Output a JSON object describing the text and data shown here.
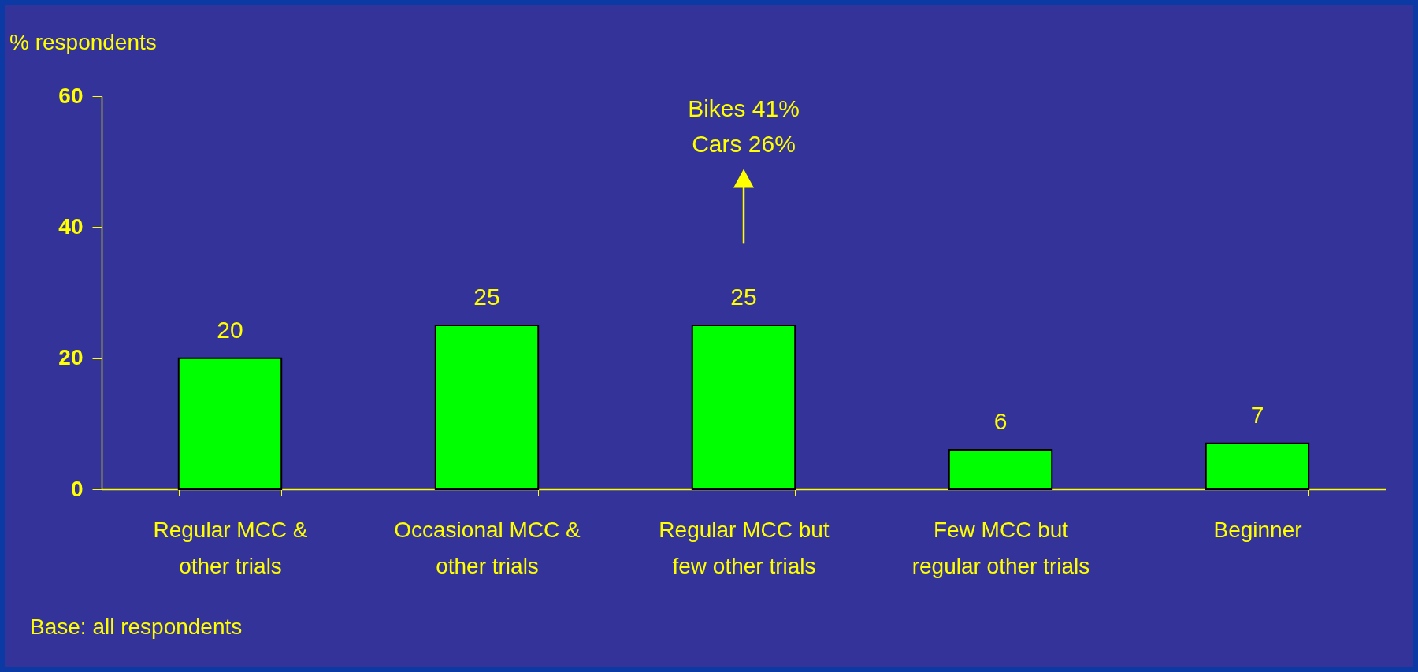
{
  "chart_data": {
    "type": "bar",
    "ylabel": "% respondents",
    "categories": [
      "Regular MCC & other trials",
      "Occasional MCC & other trials",
      "Regular MCC but few other trials",
      "Few MCC but regular other trials",
      "Beginner"
    ],
    "values": [
      20,
      25,
      25,
      6,
      7
    ],
    "color": "#00ff00",
    "ylim": [
      0,
      60
    ],
    "yticks": [
      0,
      20,
      40,
      60
    ],
    "grid": false,
    "data_labels": true,
    "annotations": [
      "Bikes 41%",
      "Cars 26%",
      "Base: all respondents"
    ]
  }
}
